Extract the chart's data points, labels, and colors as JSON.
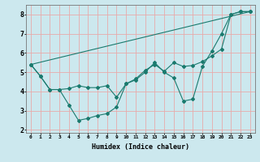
{
  "xlabel": "Humidex (Indice chaleur)",
  "background_color": "#cce8ee",
  "grid_color": "#e8aaaa",
  "line_color": "#1a7a6e",
  "xlim": [
    -0.5,
    23.5
  ],
  "ylim": [
    1.85,
    8.5
  ],
  "yticks": [
    2,
    3,
    4,
    5,
    6,
    7,
    8
  ],
  "xticks": [
    0,
    1,
    2,
    3,
    4,
    5,
    6,
    7,
    8,
    9,
    10,
    11,
    12,
    13,
    14,
    15,
    16,
    17,
    18,
    19,
    20,
    21,
    22,
    23
  ],
  "line1_x": [
    0,
    1,
    2,
    3,
    4,
    5,
    6,
    7,
    8,
    9,
    10,
    11,
    12,
    13,
    14,
    15,
    16,
    17,
    18,
    19,
    20,
    21,
    22,
    23
  ],
  "line1_y": [
    5.4,
    4.8,
    4.1,
    4.1,
    3.3,
    2.5,
    2.6,
    2.75,
    2.85,
    3.2,
    4.4,
    4.6,
    5.0,
    5.5,
    5.0,
    4.7,
    3.5,
    3.6,
    5.3,
    6.1,
    7.0,
    8.0,
    8.15,
    8.15
  ],
  "line2_x": [
    0,
    1,
    2,
    3,
    4,
    5,
    6,
    7,
    8,
    9,
    10,
    11,
    12,
    13,
    14,
    15,
    16,
    17,
    18,
    19,
    20,
    21,
    22,
    23
  ],
  "line2_y": [
    5.4,
    4.8,
    4.1,
    4.1,
    4.15,
    4.3,
    4.2,
    4.2,
    4.3,
    3.7,
    4.4,
    4.65,
    5.1,
    5.4,
    5.05,
    5.5,
    5.3,
    5.35,
    5.55,
    5.85,
    6.2,
    8.0,
    8.15,
    8.15
  ],
  "line3_x": [
    0,
    23
  ],
  "line3_y": [
    5.4,
    8.15
  ]
}
